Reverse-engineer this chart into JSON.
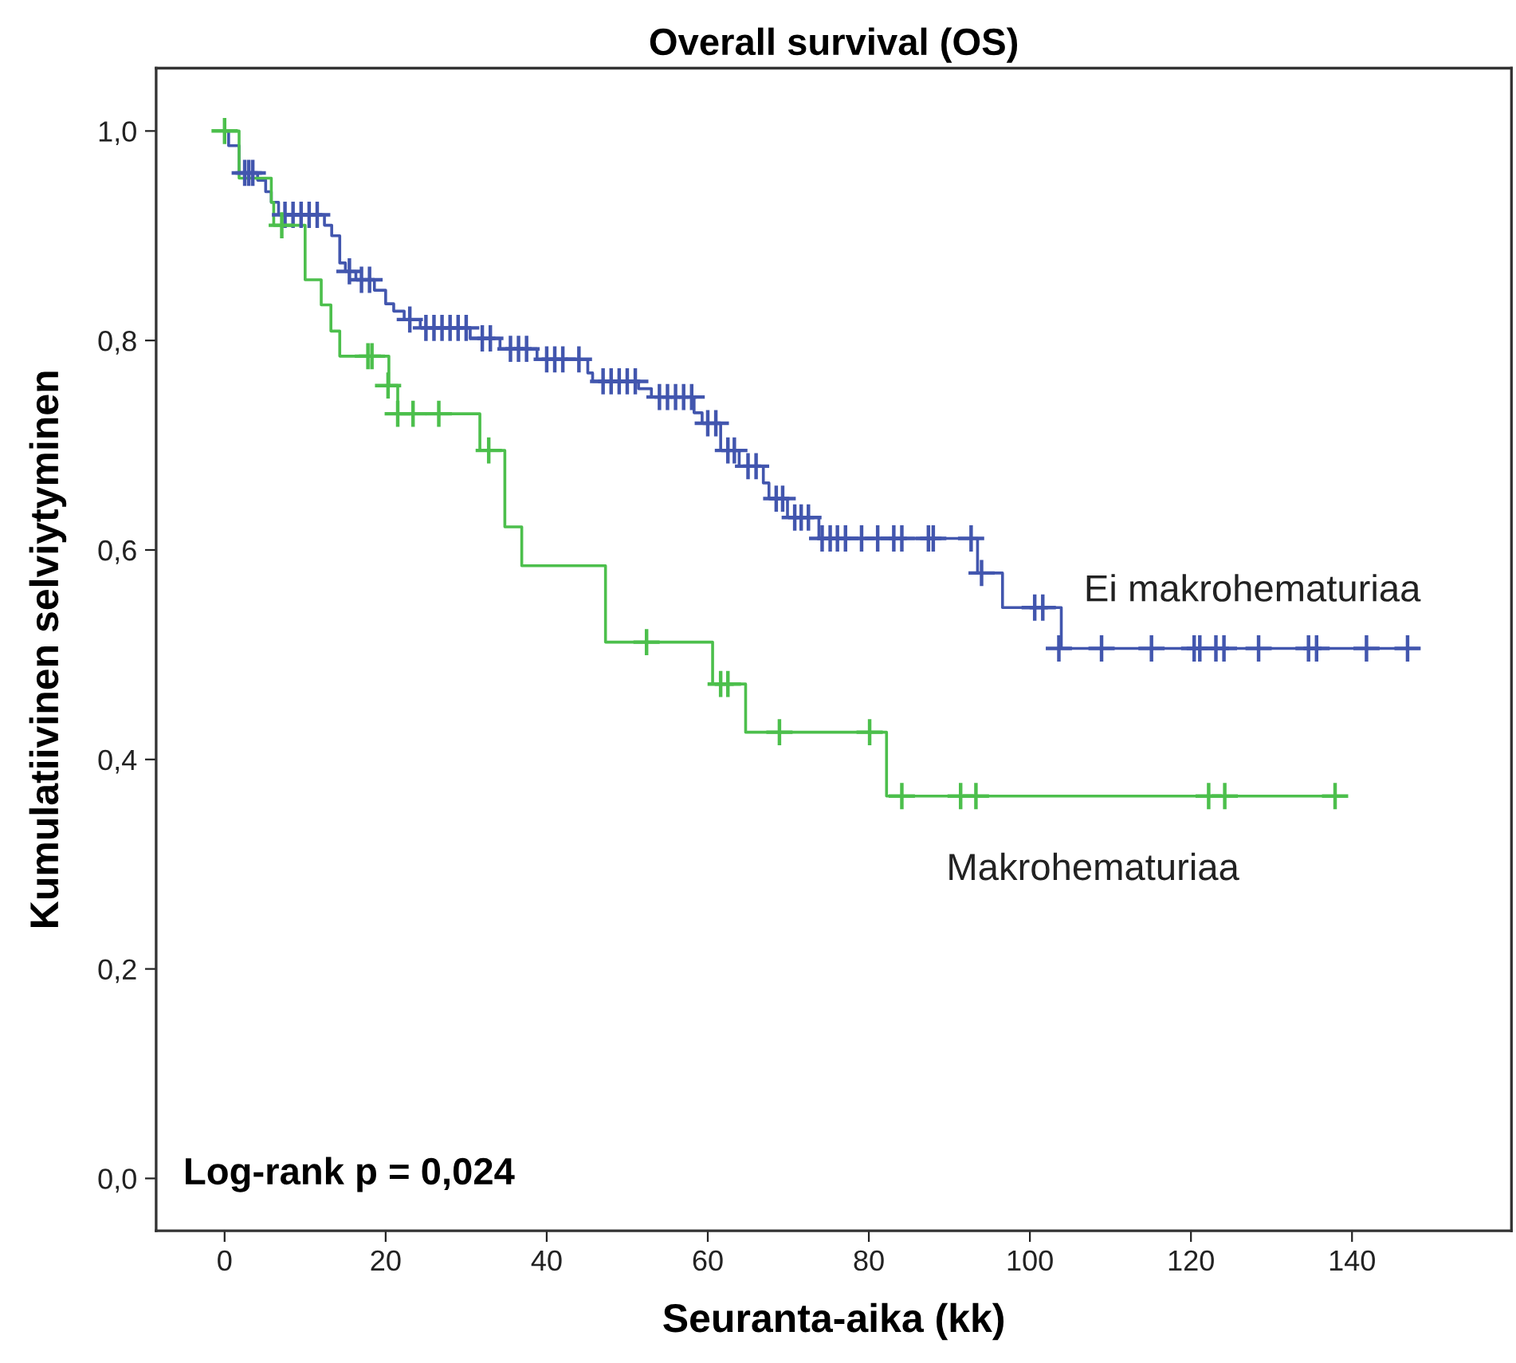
{
  "chart_data": {
    "type": "step",
    "title": "Overall survival (OS)",
    "xlabel": "Seuranta-aika (kk)",
    "ylabel": "Kumulatiivinen selviytyminen",
    "annotations": [
      "Log-rank p = 0,024"
    ],
    "xlim": [
      -8.5,
      159.8
    ],
    "ylim": [
      -0.05,
      1.06
    ],
    "xticks": [
      0,
      20,
      40,
      60,
      80,
      100,
      120,
      140
    ],
    "yticks": [
      {
        "value": 0,
        "label": "0,0"
      },
      {
        "value": 0.2,
        "label": "0,2"
      },
      {
        "value": 0.4,
        "label": "0,4"
      },
      {
        "value": 0.6,
        "label": "0,6"
      },
      {
        "value": 0.8,
        "label": "0,8"
      },
      {
        "value": 1,
        "label": "1,0"
      }
    ],
    "grid": false,
    "legend": false,
    "line_style": "solid",
    "series": [
      {
        "name": "Ei makrohematuriaa",
        "color": "#4256ae",
        "marker": "none",
        "x": [
          0,
          0.5,
          1.8,
          4.1,
          5.1,
          5.8,
          6.7,
          12.4,
          13.3,
          14.3,
          15,
          16.3,
          18.6,
          20,
          21,
          22.3,
          24.3,
          30.5,
          34.2,
          38.8,
          45.1,
          45.7,
          51.4,
          53,
          58.3,
          59.3,
          61.6,
          63.9,
          66.9,
          67.6,
          69.9,
          73.8,
          93.5,
          96.6,
          103.9,
          148.2
        ],
        "values": [
          1.0,
          0.986,
          0.96,
          0.953,
          0.942,
          0.932,
          0.92,
          0.91,
          0.9,
          0.874,
          0.866,
          0.858,
          0.848,
          0.835,
          0.828,
          0.82,
          0.812,
          0.802,
          0.792,
          0.782,
          0.769,
          0.761,
          0.754,
          0.746,
          0.731,
          0.721,
          0.695,
          0.68,
          0.664,
          0.649,
          0.631,
          0.611,
          0.578,
          0.545,
          0.506,
          0.506
        ]
      },
      {
        "name": "Makrohematuriaa",
        "color": "#4cbf4c",
        "marker": "none",
        "x": [
          0,
          1.8,
          5.8,
          6.1,
          10,
          12,
          13.2,
          14.3,
          20.4,
          21.5,
          31.7,
          34.8,
          36.9,
          47.3,
          60.6,
          64.7,
          82.2,
          137.9
        ],
        "values": [
          1.0,
          0.955,
          0.932,
          0.91,
          0.858,
          0.834,
          0.809,
          0.785,
          0.757,
          0.73,
          0.695,
          0.622,
          0.585,
          0.512,
          0.472,
          0.426,
          0.365,
          0.365
        ]
      },
      {
        "type": "scatter",
        "color": "#4256ae",
        "marker": "cross",
        "x": [
          2.5,
          3,
          3.5,
          7.5,
          8.5,
          9.5,
          10.5,
          11.5,
          15.5,
          17,
          18,
          23,
          25,
          26,
          27,
          28,
          29,
          30,
          32,
          33,
          35.5,
          36.5,
          37.5,
          40,
          41,
          42,
          44,
          47,
          48,
          49,
          50,
          51,
          54,
          55,
          56,
          57,
          58,
          60,
          61,
          62.5,
          63.3,
          65,
          66,
          68.5,
          69.3,
          70.8,
          71.6,
          72.5,
          74.2,
          75.2,
          76.1,
          77.1,
          79.1,
          81.1,
          83.1,
          84.1,
          87.4,
          88,
          92.7,
          94,
          100.6,
          101.6,
          103.6,
          108.9,
          115.1,
          120.4,
          121.1,
          123.1,
          124.1,
          128.4,
          134.6,
          135.6,
          141.8,
          146.9
        ],
        "values": [
          0.96,
          0.96,
          0.96,
          0.92,
          0.92,
          0.92,
          0.92,
          0.92,
          0.866,
          0.858,
          0.858,
          0.82,
          0.812,
          0.812,
          0.812,
          0.812,
          0.812,
          0.812,
          0.802,
          0.802,
          0.792,
          0.792,
          0.792,
          0.782,
          0.782,
          0.782,
          0.782,
          0.761,
          0.761,
          0.761,
          0.761,
          0.761,
          0.746,
          0.746,
          0.746,
          0.746,
          0.746,
          0.721,
          0.721,
          0.695,
          0.695,
          0.68,
          0.68,
          0.649,
          0.649,
          0.631,
          0.631,
          0.631,
          0.611,
          0.611,
          0.611,
          0.611,
          0.611,
          0.611,
          0.611,
          0.611,
          0.611,
          0.611,
          0.611,
          0.578,
          0.545,
          0.545,
          0.506,
          0.506,
          0.506,
          0.506,
          0.506,
          0.506,
          0.506,
          0.506,
          0.506,
          0.506,
          0.506,
          0.506
        ]
      },
      {
        "type": "scatter",
        "color": "#4cbf4c",
        "marker": "cross",
        "x": [
          0,
          7.1,
          17.8,
          18.3,
          20.3,
          21.5,
          23.4,
          26.6,
          32.8,
          52.4,
          61.6,
          62.5,
          68.9,
          80.1,
          84.1,
          91.4,
          93.3,
          122.2,
          124.2,
          137.9
        ],
        "values": [
          1.0,
          0.91,
          0.785,
          0.785,
          0.757,
          0.73,
          0.73,
          0.73,
          0.695,
          0.512,
          0.472,
          0.472,
          0.426,
          0.426,
          0.365,
          0.365,
          0.365,
          0.365,
          0.365,
          0.365
        ]
      }
    ]
  }
}
